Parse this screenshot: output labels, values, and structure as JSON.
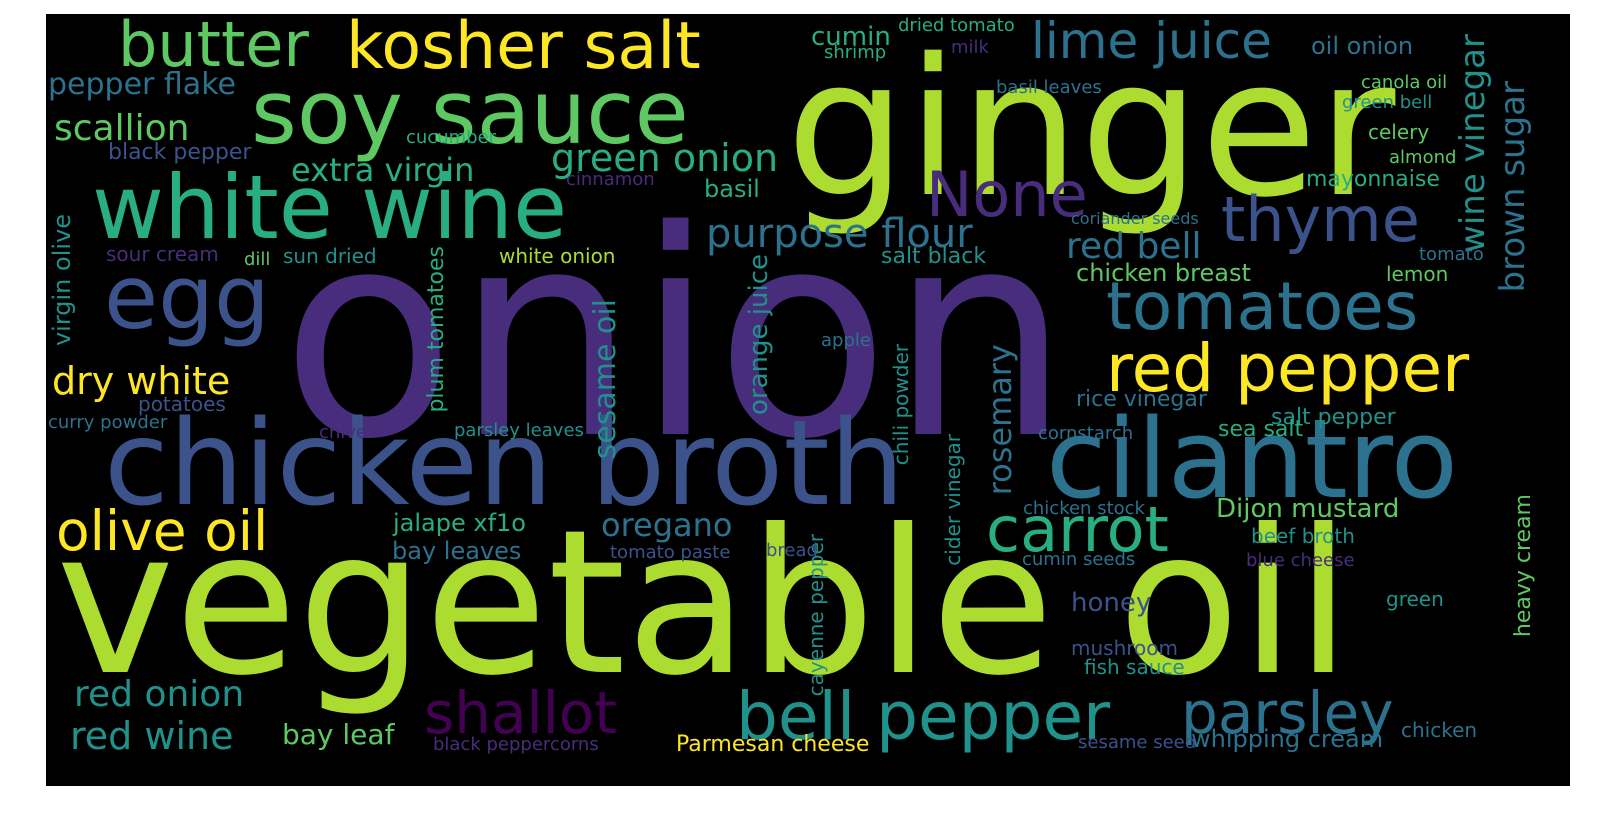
{
  "background": "#000000",
  "palette": [
    "#440154",
    "#472d7b",
    "#3b528b",
    "#2c728e",
    "#21918c",
    "#28ae80",
    "#5ec962",
    "#addc30",
    "#fde725"
  ],
  "words": [
    "onion",
    "vegetable oil",
    "ginger",
    "chicken broth",
    "cilantro",
    "white wine",
    "soy sauce",
    "egg",
    "kosher salt",
    "butter",
    "tomatoes",
    "red pepper",
    "bell pepper",
    "parsley",
    "shallot",
    "olive oil",
    "carrot",
    "lime juice",
    "thyme",
    "None",
    "green onion",
    "purpose flour",
    "red bell",
    "dry white",
    "scallion",
    "extra virgin",
    "pepper flake",
    "red onion",
    "red wine",
    "black pepper",
    "oregano",
    "sesame oil",
    "rosemary",
    "wine vinegar",
    "brown sugar",
    "chicken breast",
    "Dijon mustard",
    "virgin olive",
    "plum tomatoes",
    "orange juice",
    "basil",
    "honey",
    "mushroom",
    "heavy cream",
    "jalape xf1o",
    "bay leaf",
    "bay leaves",
    "Parmesan cheese",
    "whipping cream",
    "cumin",
    "oil onion",
    "mayonnaise",
    "rice vinegar",
    "salt pepper",
    "sea salt",
    "salt black",
    "white onion",
    "sun dried",
    "sour cream",
    "cider vinegar",
    "cayenne pepper",
    "chili powder",
    "fish sauce",
    "beef broth",
    "chicken stock",
    "tomato paste",
    "potatoes",
    "celery",
    "green bell",
    "lemon",
    "tomato",
    "dill",
    "shrimp",
    "dried tomato",
    "milk",
    "canola oil",
    "cucumber",
    "basil leaves",
    "coriander seeds",
    "green",
    "chicken",
    "sesame seed",
    "parsley leaves",
    "cinnamon",
    "cornstarch",
    "curry powder",
    "chive",
    "bread",
    "cumin seeds",
    "apple",
    "almond",
    "blue cheese",
    "black peppercorns"
  ]
}
